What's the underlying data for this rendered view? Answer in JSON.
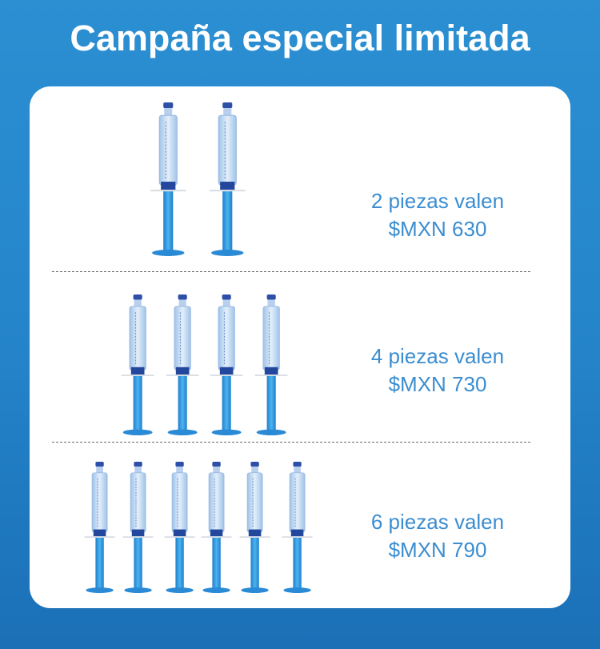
{
  "title": "Campaña especial limitada",
  "offers": [
    {
      "quantity": 2,
      "line1": "2 piezas valen",
      "line2": "$MXN 630"
    },
    {
      "quantity": 4,
      "line1": "4 piezas valen",
      "line2": "$MXN 730"
    },
    {
      "quantity": 6,
      "line1": "6 piezas valen",
      "line2": "$MXN 790"
    }
  ],
  "colors": {
    "background": "#2585cb",
    "card": "#ffffff",
    "price_text": "#3b8dd0",
    "syringe_rod": "#2f9ae0"
  }
}
